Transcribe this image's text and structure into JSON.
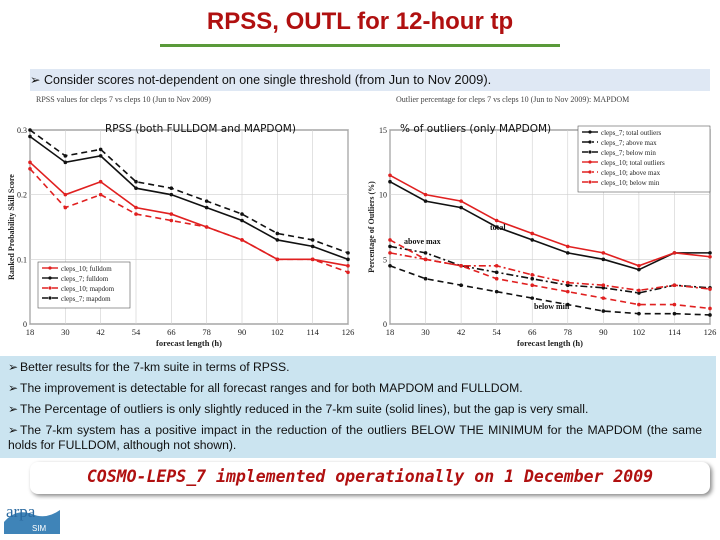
{
  "slide": {
    "title": "RPSS, OUTL for 12-hour tp",
    "intro_prefix": "Consider scores not-dependent on one single threshold",
    "intro_suffix": " (from Jun to Nov 2009).",
    "notes": [
      "Better results for the 7-km suite in terms of RPSS.",
      "The improvement is detectable for all forecast ranges and for both MAPDOM and FULLDOM.",
      "The Percentage of outliers is only slightly reduced in the 7-km suite (solid lines), but the gap is very small.",
      "The 7-km system has a positive impact in the reduction of the outliers BELOW THE MINIMUM for the MAPDOM (the same holds for FULLDOM, although not shown)."
    ],
    "banner": "COSMO-LEPS_7 implemented operationally on 1 December 2009",
    "logo_text": "arpa",
    "logo_sub": "SIM",
    "colors": {
      "title": "#b01010",
      "notes_bg": "#cbe4f0",
      "intro_bg": "#dfe8f4",
      "rule": "#5a9a3a"
    }
  },
  "chart_data": [
    {
      "type": "line",
      "title": "RPSS values for cleps 7 vs cleps 10 (Jun to Nov 2009)",
      "overlay_label": "RPSS (both FULLDOM and MAPDOM)",
      "xlabel": "forecast length (h)",
      "ylabel": "Ranked Probability Skill Score",
      "x": [
        18,
        30,
        42,
        54,
        66,
        78,
        90,
        102,
        114,
        126
      ],
      "xlim": [
        18,
        126
      ],
      "ylim": [
        0,
        0.3
      ],
      "yticks": [
        0,
        0.1,
        0.2,
        0.3
      ],
      "ytick_labels": [
        "0",
        "0.1",
        "0.2",
        "0.3"
      ],
      "legend_position": "bottom-left",
      "series": [
        {
          "name": "cleps_10; fulldom",
          "color": "#e02020",
          "dash": "solid",
          "values": [
            0.25,
            0.2,
            0.22,
            0.18,
            0.17,
            0.15,
            0.13,
            0.1,
            0.1,
            0.09
          ]
        },
        {
          "name": "cleps_7; fulldom",
          "color": "#111111",
          "dash": "solid",
          "values": [
            0.29,
            0.25,
            0.26,
            0.21,
            0.2,
            0.18,
            0.16,
            0.13,
            0.12,
            0.1
          ]
        },
        {
          "name": "cleps_10; mapdom",
          "color": "#e02020",
          "dash": "dashed",
          "values": [
            0.24,
            0.18,
            0.2,
            0.17,
            0.16,
            0.15,
            0.13,
            0.1,
            0.1,
            0.08
          ]
        },
        {
          "name": "cleps_7; mapdom",
          "color": "#111111",
          "dash": "dashed",
          "values": [
            0.3,
            0.26,
            0.27,
            0.22,
            0.21,
            0.19,
            0.17,
            0.14,
            0.13,
            0.11
          ]
        }
      ]
    },
    {
      "type": "line",
      "title": "Outlier percentage for cleps 7 vs cleps 10 (Jun to Nov 2009): MAPDOM",
      "overlay_label": "% of outliers (only MAPDOM)",
      "xlabel": "forecast length (h)",
      "ylabel": "Percentage of Outliers (%)",
      "x": [
        18,
        30,
        42,
        54,
        66,
        78,
        90,
        102,
        114,
        126
      ],
      "xlim": [
        18,
        126
      ],
      "ylim": [
        0,
        15
      ],
      "yticks": [
        0,
        5,
        10,
        15
      ],
      "ytick_labels": [
        "0",
        "5",
        "10",
        "15"
      ],
      "legend_position": "top-right",
      "annotations": [
        "total",
        "above max",
        "below min"
      ],
      "series": [
        {
          "name": "cleps_7; total outliers",
          "color": "#111111",
          "dash": "solid",
          "values": [
            11.0,
            9.5,
            9.0,
            7.5,
            6.5,
            5.5,
            5.0,
            4.2,
            5.5,
            5.5
          ]
        },
        {
          "name": "cleps_7; above max",
          "color": "#111111",
          "dash": "dashdot",
          "values": [
            6.0,
            5.5,
            4.5,
            4.0,
            3.5,
            3.0,
            2.8,
            2.4,
            3.0,
            2.8
          ]
        },
        {
          "name": "cleps_7; below min",
          "color": "#111111",
          "dash": "dashed",
          "values": [
            4.5,
            3.5,
            3.0,
            2.5,
            2.0,
            1.5,
            1.0,
            0.8,
            0.8,
            0.7
          ]
        },
        {
          "name": "cleps_10; total outliers",
          "color": "#e02020",
          "dash": "solid",
          "values": [
            11.5,
            10.0,
            9.5,
            8.0,
            7.0,
            6.0,
            5.5,
            4.5,
            5.5,
            5.2
          ]
        },
        {
          "name": "cleps_10; above max",
          "color": "#e02020",
          "dash": "dashdot",
          "values": [
            5.5,
            5.0,
            4.5,
            4.5,
            3.8,
            3.2,
            3.0,
            2.6,
            3.0,
            2.7
          ]
        },
        {
          "name": "cleps_10; below min",
          "color": "#e02020",
          "dash": "dashed",
          "values": [
            6.5,
            5.0,
            4.5,
            3.5,
            3.0,
            2.5,
            2.0,
            1.5,
            1.5,
            1.2
          ]
        }
      ]
    }
  ]
}
